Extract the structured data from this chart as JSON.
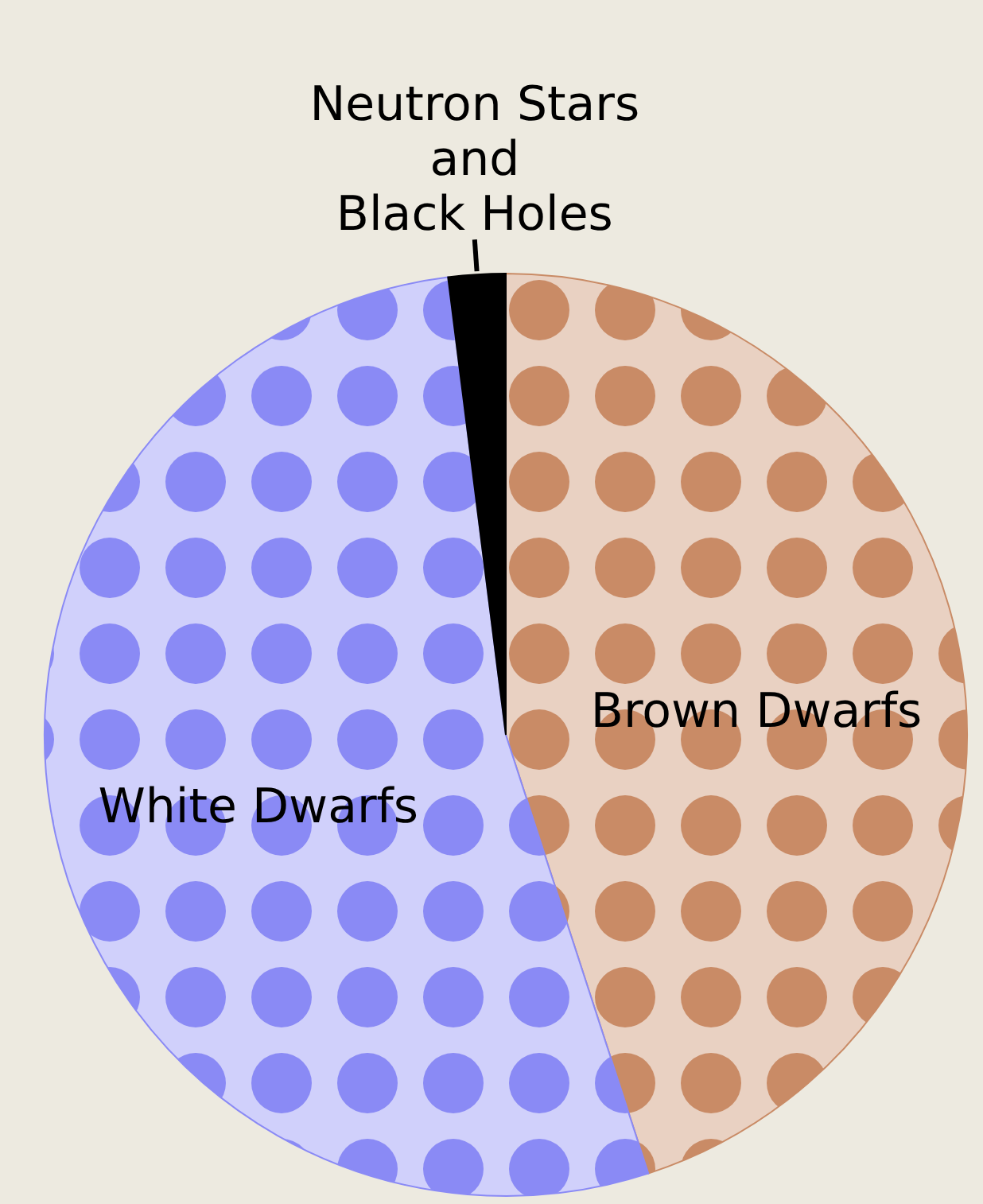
{
  "chart_data": {
    "type": "pie",
    "categories": [
      "Brown Dwarfs",
      "White Dwarfs",
      "Neutron Stars\nand\nBlack Holes"
    ],
    "values": [
      45,
      53,
      2
    ],
    "colors": [
      "#c98b66",
      "#8a8af5",
      "#000000"
    ]
  }
}
